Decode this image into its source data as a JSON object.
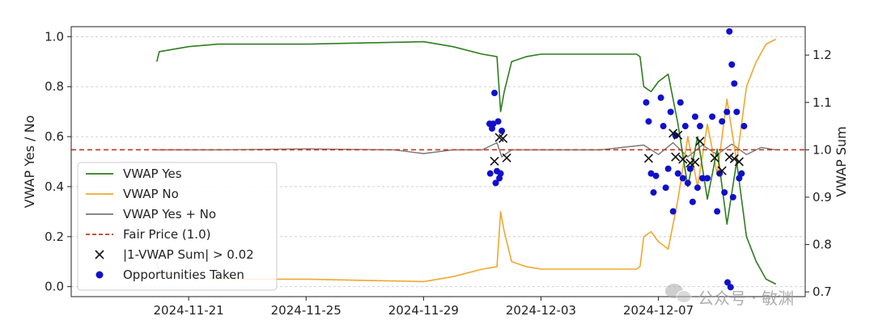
{
  "chart_data": {
    "type": "line",
    "ylabel_left": "VWAP Yes / No",
    "ylabel_right": "VWAP Sum",
    "ylim_left": [
      -0.04,
      1.04
    ],
    "ylim_right": [
      0.69,
      1.26
    ],
    "xlim": [
      "2024-11-17T00:00",
      "2024-12-12T00:00"
    ],
    "x_tick_labels": [
      "2024-11-21",
      "2024-11-25",
      "2024-11-29",
      "2024-12-03",
      "2024-12-07"
    ],
    "x_ticks": [
      "2024-11-21",
      "2024-11-25",
      "2024-11-29",
      "2024-12-03",
      "2024-12-07"
    ],
    "y_ticks_left": [
      "0.0",
      "0.2",
      "0.4",
      "0.6",
      "0.8",
      "1.0"
    ],
    "y_ticks_right": [
      "0.7",
      "0.8",
      "0.9",
      "1.0",
      "1.1",
      "1.2"
    ],
    "grid": "horizontal dashed",
    "legend_position": "lower-left",
    "colors": {
      "yes": "#2e7d1f",
      "no": "#f0a830",
      "sum": "#777777",
      "fair": "#c0392b",
      "marker_x": "#111111",
      "marker_dot": "#1010cc"
    },
    "series": [
      {
        "name": "VWAP Yes",
        "axis": "left",
        "x": [
          "2024-11-19T22:00",
          "2024-11-20T00:00",
          "2024-11-21T00:00",
          "2024-11-22T00:00",
          "2024-11-23T00:00",
          "2024-11-25T00:00",
          "2024-11-27T00:00",
          "2024-11-29T00:00",
          "2024-11-30T00:00",
          "2024-12-01T00:00",
          "2024-12-01T12:00",
          "2024-12-01T15:00",
          "2024-12-01T18:00",
          "2024-12-02T00:00",
          "2024-12-02T12:00",
          "2024-12-03T00:00",
          "2024-12-04T00:00",
          "2024-12-05T00:00",
          "2024-12-06T00:00",
          "2024-12-06T06:00",
          "2024-12-06T09:00",
          "2024-12-06T12:00",
          "2024-12-06T18:00",
          "2024-12-07T00:00",
          "2024-12-07T08:00",
          "2024-12-07T16:00",
          "2024-12-08T00:00",
          "2024-12-08T08:00",
          "2024-12-08T16:00",
          "2024-12-09T00:00",
          "2024-12-09T08:00",
          "2024-12-09T16:00",
          "2024-12-10T00:00",
          "2024-12-10T08:00",
          "2024-12-10T16:00",
          "2024-12-11T00:00"
        ],
        "values": [
          0.9,
          0.94,
          0.96,
          0.97,
          0.97,
          0.97,
          0.975,
          0.98,
          0.96,
          0.93,
          0.92,
          0.7,
          0.78,
          0.9,
          0.92,
          0.93,
          0.93,
          0.93,
          0.93,
          0.93,
          0.92,
          0.8,
          0.78,
          0.82,
          0.85,
          0.65,
          0.4,
          0.6,
          0.35,
          0.55,
          0.25,
          0.5,
          0.2,
          0.1,
          0.03,
          0.01
        ]
      },
      {
        "name": "VWAP No",
        "axis": "left",
        "x": [
          "2024-11-19T22:00",
          "2024-11-20T00:00",
          "2024-11-21T00:00",
          "2024-11-22T00:00",
          "2024-11-23T00:00",
          "2024-11-25T00:00",
          "2024-11-27T00:00",
          "2024-11-29T00:00",
          "2024-11-30T00:00",
          "2024-12-01T00:00",
          "2024-12-01T12:00",
          "2024-12-01T15:00",
          "2024-12-01T18:00",
          "2024-12-02T00:00",
          "2024-12-02T12:00",
          "2024-12-03T00:00",
          "2024-12-04T00:00",
          "2024-12-05T00:00",
          "2024-12-06T00:00",
          "2024-12-06T06:00",
          "2024-12-06T09:00",
          "2024-12-06T12:00",
          "2024-12-06T18:00",
          "2024-12-07T00:00",
          "2024-12-07T08:00",
          "2024-12-07T16:00",
          "2024-12-08T00:00",
          "2024-12-08T08:00",
          "2024-12-08T16:00",
          "2024-12-09T00:00",
          "2024-12-09T08:00",
          "2024-12-09T16:00",
          "2024-12-10T00:00",
          "2024-12-10T08:00",
          "2024-12-10T16:00",
          "2024-12-11T00:00"
        ],
        "values": [
          0.1,
          0.06,
          0.04,
          0.03,
          0.03,
          0.03,
          0.025,
          0.02,
          0.04,
          0.07,
          0.08,
          0.3,
          0.22,
          0.1,
          0.08,
          0.07,
          0.07,
          0.07,
          0.07,
          0.07,
          0.08,
          0.2,
          0.22,
          0.18,
          0.15,
          0.35,
          0.6,
          0.4,
          0.65,
          0.45,
          0.75,
          0.5,
          0.8,
          0.9,
          0.97,
          0.99
        ]
      },
      {
        "name": "VWAP Yes + No",
        "axis": "right",
        "x": [
          "2024-11-19T22:00",
          "2024-11-22T00:00",
          "2024-11-25T00:00",
          "2024-11-28T00:00",
          "2024-11-29T00:00",
          "2024-11-30T00:00",
          "2024-12-01T00:00",
          "2024-12-01T12:00",
          "2024-12-01T16:00",
          "2024-12-02T00:00",
          "2024-12-03T00:00",
          "2024-12-05T00:00",
          "2024-12-06T12:00",
          "2024-12-07T00:00",
          "2024-12-07T12:00",
          "2024-12-08T00:00",
          "2024-12-08T12:00",
          "2024-12-09T00:00",
          "2024-12-09T12:00",
          "2024-12-10T00:00",
          "2024-12-10T12:00",
          "2024-12-11T00:00"
        ],
        "values": [
          1.0,
          1.0,
          1.002,
          1.0,
          0.992,
          1.0,
          1.0,
          1.015,
          0.985,
          1.0,
          1.0,
          1.0,
          1.01,
          0.99,
          1.015,
          0.985,
          1.01,
          0.99,
          1.012,
          0.99,
          1.005,
          1.0
        ]
      },
      {
        "name": "Fair Price (1.0)",
        "axis": "right",
        "values": [
          1.0
        ]
      },
      {
        "name": "|1-VWAP Sum| > 0.02",
        "axis": "right",
        "marker": "x",
        "x": [
          "2024-12-01T10:00",
          "2024-12-01T14:00",
          "2024-12-01T17:00",
          "2024-12-01T20:00",
          "2024-12-06T16:00",
          "2024-12-07T12:00",
          "2024-12-07T14:00",
          "2024-12-07T16:00",
          "2024-12-07T20:00",
          "2024-12-08T02:00",
          "2024-12-08T06:00",
          "2024-12-08T10:00",
          "2024-12-08T22:00",
          "2024-12-09T04:00",
          "2024-12-09T10:00",
          "2024-12-09T14:00",
          "2024-12-09T18:00"
        ],
        "values": [
          0.976,
          1.026,
          1.024,
          0.983,
          0.982,
          1.035,
          0.985,
          1.031,
          0.98,
          0.972,
          0.974,
          1.018,
          0.983,
          0.956,
          0.985,
          0.981,
          0.975
        ]
      },
      {
        "name": "Opportunities Taken",
        "axis": "right",
        "marker": "dot",
        "x": [
          "2024-12-01T06:00",
          "2024-12-01T08:00",
          "2024-12-01T10:00",
          "2024-12-01T12:00",
          "2024-12-01T14:00",
          "2024-12-01T16:00",
          "2024-12-01T06:30",
          "2024-12-01T09:00",
          "2024-12-01T11:00",
          "2024-12-01T13:00",
          "2024-12-01T15:00",
          "2024-12-06T14:00",
          "2024-12-06T16:00",
          "2024-12-06T18:00",
          "2024-12-06T20:00",
          "2024-12-06T22:00",
          "2024-12-07T02:00",
          "2024-12-07T04:00",
          "2024-12-07T06:00",
          "2024-12-07T08:00",
          "2024-12-07T10:00",
          "2024-12-07T12:00",
          "2024-12-07T14:00",
          "2024-12-07T16:00",
          "2024-12-07T18:00",
          "2024-12-07T20:00",
          "2024-12-07T22:00",
          "2024-12-08T00:00",
          "2024-12-08T02:00",
          "2024-12-08T04:00",
          "2024-12-08T06:00",
          "2024-12-08T08:00",
          "2024-12-08T10:00",
          "2024-12-08T12:00",
          "2024-12-08T16:00",
          "2024-12-08T20:00",
          "2024-12-09T00:00",
          "2024-12-09T02:00",
          "2024-12-09T04:00",
          "2024-12-09T06:00",
          "2024-12-09T08:00",
          "2024-12-09T10:00",
          "2024-12-09T12:00",
          "2024-12-09T14:00",
          "2024-12-09T16:00",
          "2024-12-09T18:00",
          "2024-12-09T20:00",
          "2024-12-09T22:00",
          "2024-12-09T08:30",
          "2024-12-09T11:00",
          "2024-12-09T13:00"
        ],
        "values": [
          1.055,
          1.045,
          1.12,
          0.955,
          0.94,
          1.04,
          0.95,
          1.055,
          0.93,
          1.06,
          0.95,
          1.1,
          1.06,
          0.95,
          0.91,
          0.945,
          1.11,
          1.05,
          0.92,
          0.96,
          1.08,
          0.87,
          1.03,
          0.95,
          1.1,
          0.94,
          1.05,
          0.93,
          0.96,
          0.89,
          1.07,
          0.92,
          1.05,
          0.94,
          0.94,
          1.07,
          0.87,
          0.95,
          1.06,
          0.91,
          1.08,
          1.25,
          1.18,
          1.14,
          1.08,
          0.94,
          0.95,
          1.05,
          0.72,
          0.71,
          0.9
        ]
      }
    ]
  },
  "legend": [
    {
      "label": "VWAP Yes",
      "style": "line",
      "color": "#2e7d1f"
    },
    {
      "label": "VWAP No",
      "style": "line",
      "color": "#f0a830"
    },
    {
      "label": "VWAP Yes + No",
      "style": "line",
      "color": "#777777"
    },
    {
      "label": "Fair Price (1.0)",
      "style": "dashed",
      "color": "#c0392b"
    },
    {
      "label": "|1-VWAP Sum| > 0.02",
      "style": "x",
      "color": "#111111"
    },
    {
      "label": "Opportunities Taken",
      "style": "dot",
      "color": "#1010cc"
    }
  ],
  "watermark": {
    "text": "公众号 · 敏渊",
    "icon": "wechat-icon"
  }
}
